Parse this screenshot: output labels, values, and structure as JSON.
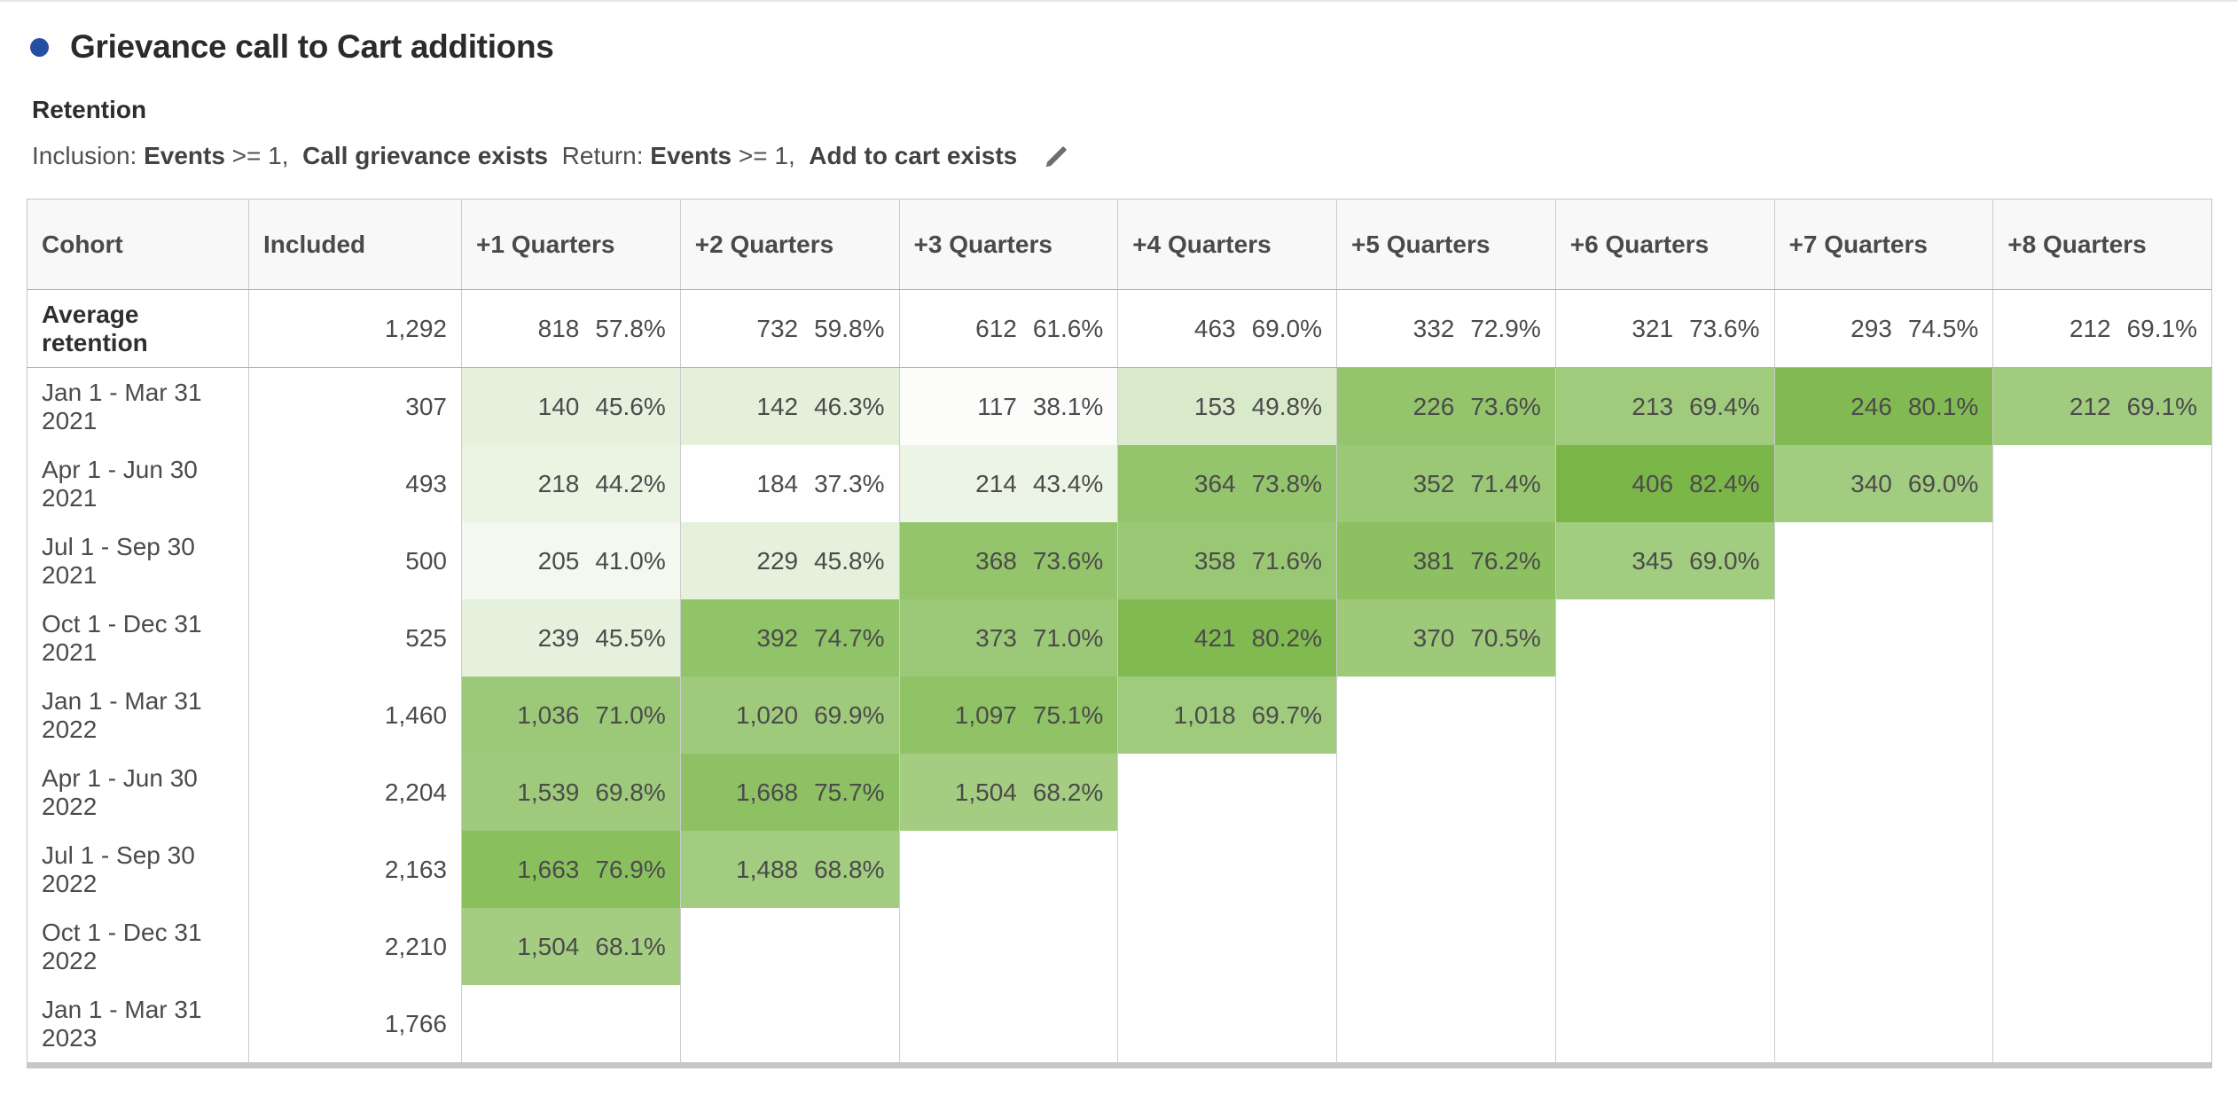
{
  "panel": {
    "title": "Grievance call to Cart additions",
    "bullet_color": "#254EA0",
    "subtitle": "Retention",
    "criteria": {
      "segments": [
        {
          "text": "Inclusion: ",
          "bold": false
        },
        {
          "text": "Events",
          "bold": true
        },
        {
          "text": " >= 1,  ",
          "bold": false
        },
        {
          "text": "Call grievance exists",
          "bold": true
        },
        {
          "text": "  Return: ",
          "bold": false
        },
        {
          "text": "Events",
          "bold": true
        },
        {
          "text": " >= 1,  ",
          "bold": false
        },
        {
          "text": "Add to cart exists",
          "bold": true
        }
      ],
      "edit_icon": "pencil-icon",
      "edit_icon_color": "#6e6e6e"
    }
  },
  "table": {
    "columns": [
      "Cohort",
      "Included",
      "+1 Quarters",
      "+2 Quarters",
      "+3 Quarters",
      "+4 Quarters",
      "+5 Quarters",
      "+6 Quarters",
      "+7 Quarters",
      "+8 Quarters"
    ],
    "heat": {
      "base_color": "#7AB648",
      "min_pct": 37,
      "max_pct": 82.5
    },
    "average_row": {
      "label": "Average retention",
      "included": "1,292",
      "cells": [
        {
          "count": "818",
          "pct": 57.8
        },
        {
          "count": "732",
          "pct": 59.8
        },
        {
          "count": "612",
          "pct": 61.6
        },
        {
          "count": "463",
          "pct": 69.0
        },
        {
          "count": "332",
          "pct": 72.9
        },
        {
          "count": "321",
          "pct": 73.6
        },
        {
          "count": "293",
          "pct": 74.5
        },
        {
          "count": "212",
          "pct": 69.1
        }
      ]
    },
    "rows": [
      {
        "label": "Jan 1 - Mar 31 2021",
        "included": "307",
        "cells": [
          {
            "count": "140",
            "pct": 45.6
          },
          {
            "count": "142",
            "pct": 46.3
          },
          {
            "count": "117",
            "pct": 38.1
          },
          {
            "count": "153",
            "pct": 49.8
          },
          {
            "count": "226",
            "pct": 73.6
          },
          {
            "count": "213",
            "pct": 69.4
          },
          {
            "count": "246",
            "pct": 80.1
          },
          {
            "count": "212",
            "pct": 69.1
          }
        ]
      },
      {
        "label": "Apr 1 - Jun 30 2021",
        "included": "493",
        "cells": [
          {
            "count": "218",
            "pct": 44.2
          },
          {
            "count": "184",
            "pct": 37.3
          },
          {
            "count": "214",
            "pct": 43.4
          },
          {
            "count": "364",
            "pct": 73.8
          },
          {
            "count": "352",
            "pct": 71.4
          },
          {
            "count": "406",
            "pct": 82.4
          },
          {
            "count": "340",
            "pct": 69.0
          },
          null
        ]
      },
      {
        "label": "Jul 1 - Sep 30 2021",
        "included": "500",
        "cells": [
          {
            "count": "205",
            "pct": 41.0
          },
          {
            "count": "229",
            "pct": 45.8
          },
          {
            "count": "368",
            "pct": 73.6
          },
          {
            "count": "358",
            "pct": 71.6
          },
          {
            "count": "381",
            "pct": 76.2
          },
          {
            "count": "345",
            "pct": 69.0
          },
          null,
          null
        ]
      },
      {
        "label": "Oct 1 - Dec 31 2021",
        "included": "525",
        "cells": [
          {
            "count": "239",
            "pct": 45.5
          },
          {
            "count": "392",
            "pct": 74.7
          },
          {
            "count": "373",
            "pct": 71.0
          },
          {
            "count": "421",
            "pct": 80.2
          },
          {
            "count": "370",
            "pct": 70.5
          },
          null,
          null,
          null
        ]
      },
      {
        "label": "Jan 1 - Mar 31 2022",
        "included": "1,460",
        "cells": [
          {
            "count": "1,036",
            "pct": 71.0
          },
          {
            "count": "1,020",
            "pct": 69.9
          },
          {
            "count": "1,097",
            "pct": 75.1
          },
          {
            "count": "1,018",
            "pct": 69.7
          },
          null,
          null,
          null,
          null
        ]
      },
      {
        "label": "Apr 1 - Jun 30 2022",
        "included": "2,204",
        "cells": [
          {
            "count": "1,539",
            "pct": 69.8
          },
          {
            "count": "1,668",
            "pct": 75.7
          },
          {
            "count": "1,504",
            "pct": 68.2
          },
          null,
          null,
          null,
          null,
          null
        ]
      },
      {
        "label": "Jul 1 - Sep 30 2022",
        "included": "2,163",
        "cells": [
          {
            "count": "1,663",
            "pct": 76.9
          },
          {
            "count": "1,488",
            "pct": 68.8
          },
          null,
          null,
          null,
          null,
          null,
          null
        ]
      },
      {
        "label": "Oct 1 - Dec 31 2022",
        "included": "2,210",
        "cells": [
          {
            "count": "1,504",
            "pct": 68.1
          },
          null,
          null,
          null,
          null,
          null,
          null,
          null
        ]
      },
      {
        "label": "Jan 1 - Mar 31 2023",
        "included": "1,766",
        "cells": [
          null,
          null,
          null,
          null,
          null,
          null,
          null,
          null
        ]
      }
    ]
  }
}
